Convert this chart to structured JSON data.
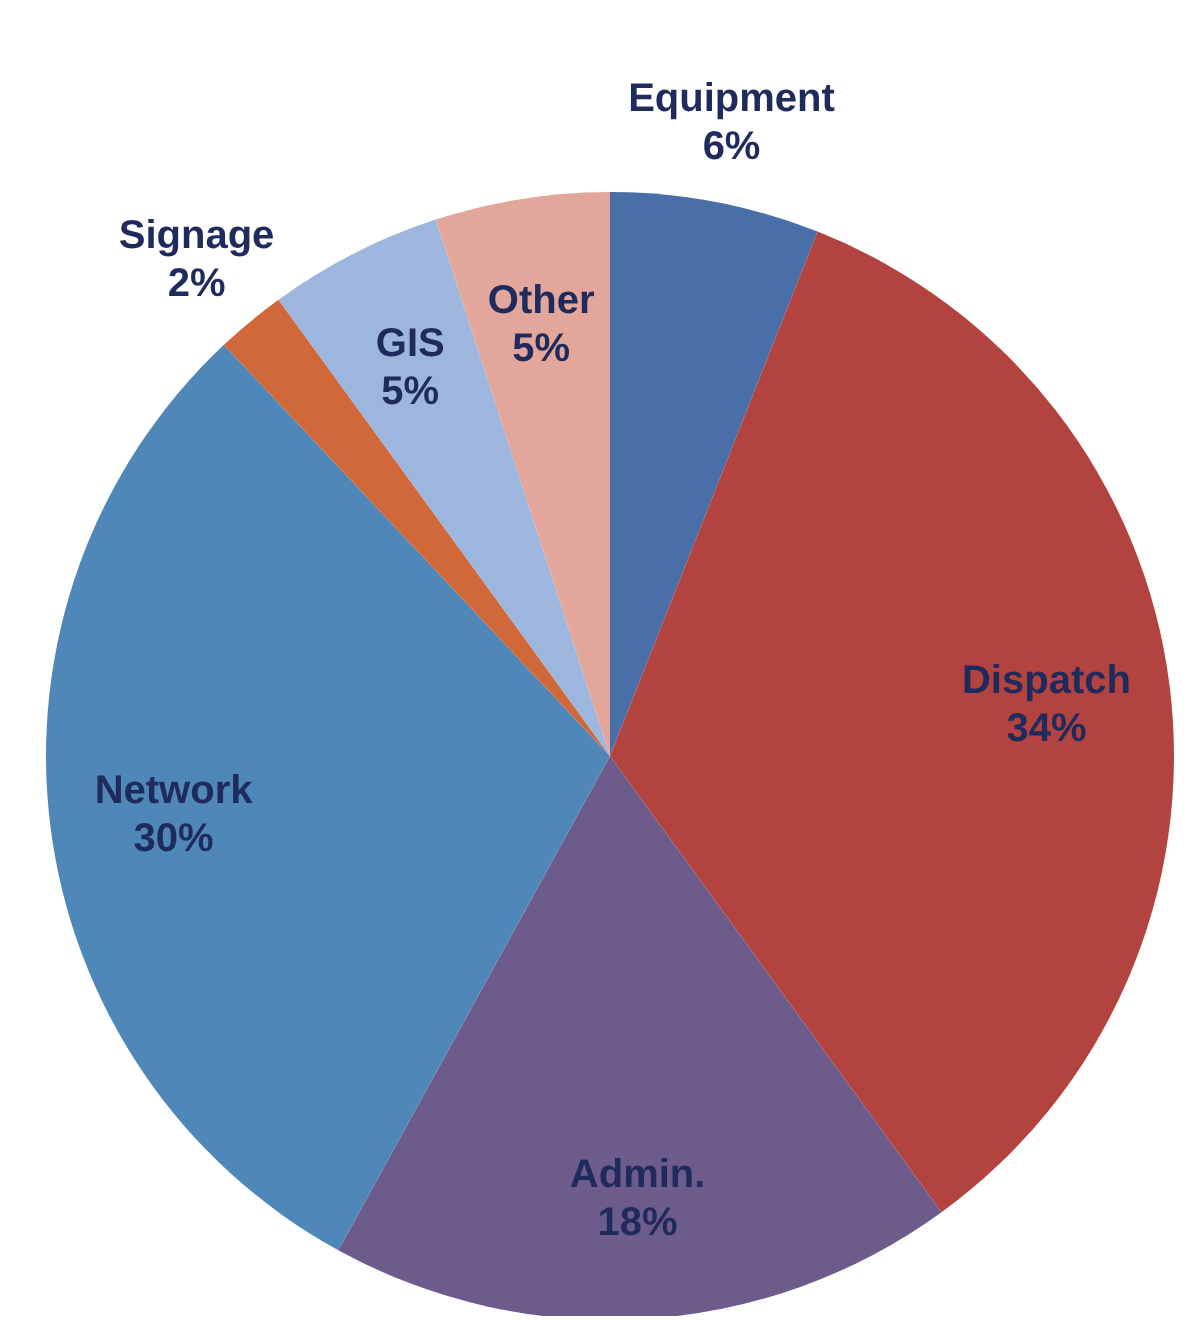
{
  "chart_data": {
    "type": "pie",
    "categories": [
      "Equipment",
      "Dispatch",
      "Admin.",
      "Network",
      "Signage",
      "GIS",
      "Other"
    ],
    "values": [
      6,
      34,
      18,
      30,
      2,
      5,
      5
    ],
    "value_labels": [
      "6%",
      "34%",
      "18%",
      "30%",
      "2%",
      "5%",
      "5%"
    ],
    "colors": [
      "#4a6ea8",
      "#b3433f",
      "#6d5b8c",
      "#5087b9",
      "#d0683a",
      "#9db6de",
      "#e2a69b"
    ],
    "legend": false
  }
}
